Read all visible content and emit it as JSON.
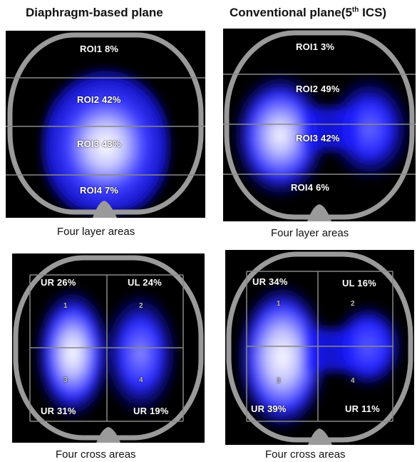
{
  "headers": {
    "left": "Diaphragm-based plane",
    "right_prefix": "Conventional plane(5",
    "right_sup": "th",
    "right_suffix": " ICS)"
  },
  "captions": {
    "top_left": "Four layer areas",
    "top_right": "Four layer areas",
    "bottom_left": "Four cross areas",
    "bottom_right": "Four cross areas"
  },
  "panels": {
    "top_left": {
      "roi1": "ROI1 8%",
      "roi2": "ROI2 42%",
      "roi3": "ROI3 43%",
      "roi4": "ROI4  7%"
    },
    "top_right": {
      "roi1": "ROI1 3%",
      "roi2": "ROI2  49%",
      "roi3": "ROI3  42%",
      "roi4": "ROI4  6%"
    },
    "bottom_left": {
      "ur_top": "UR  26%",
      "ul_top": "UL  24%",
      "ur_bottom": "UR  31%",
      "ur_bottom_right": "UR  19%",
      "n1": "1",
      "n2": "2",
      "n3": "3",
      "n4": "4"
    },
    "bottom_right": {
      "ur_top": "UR  34%",
      "ul_top": "UL  16%",
      "ur_bottom": "UR  39%",
      "ur_bottom_right": "UR  11%",
      "n1": "1",
      "n2": "2",
      "n3": "3",
      "n4": "4"
    }
  },
  "colors": {
    "ventilation": "#1a1aff",
    "ventilation_core": "#ffffff",
    "thorax_outline": "#9a9a9a",
    "background": "#000000"
  }
}
